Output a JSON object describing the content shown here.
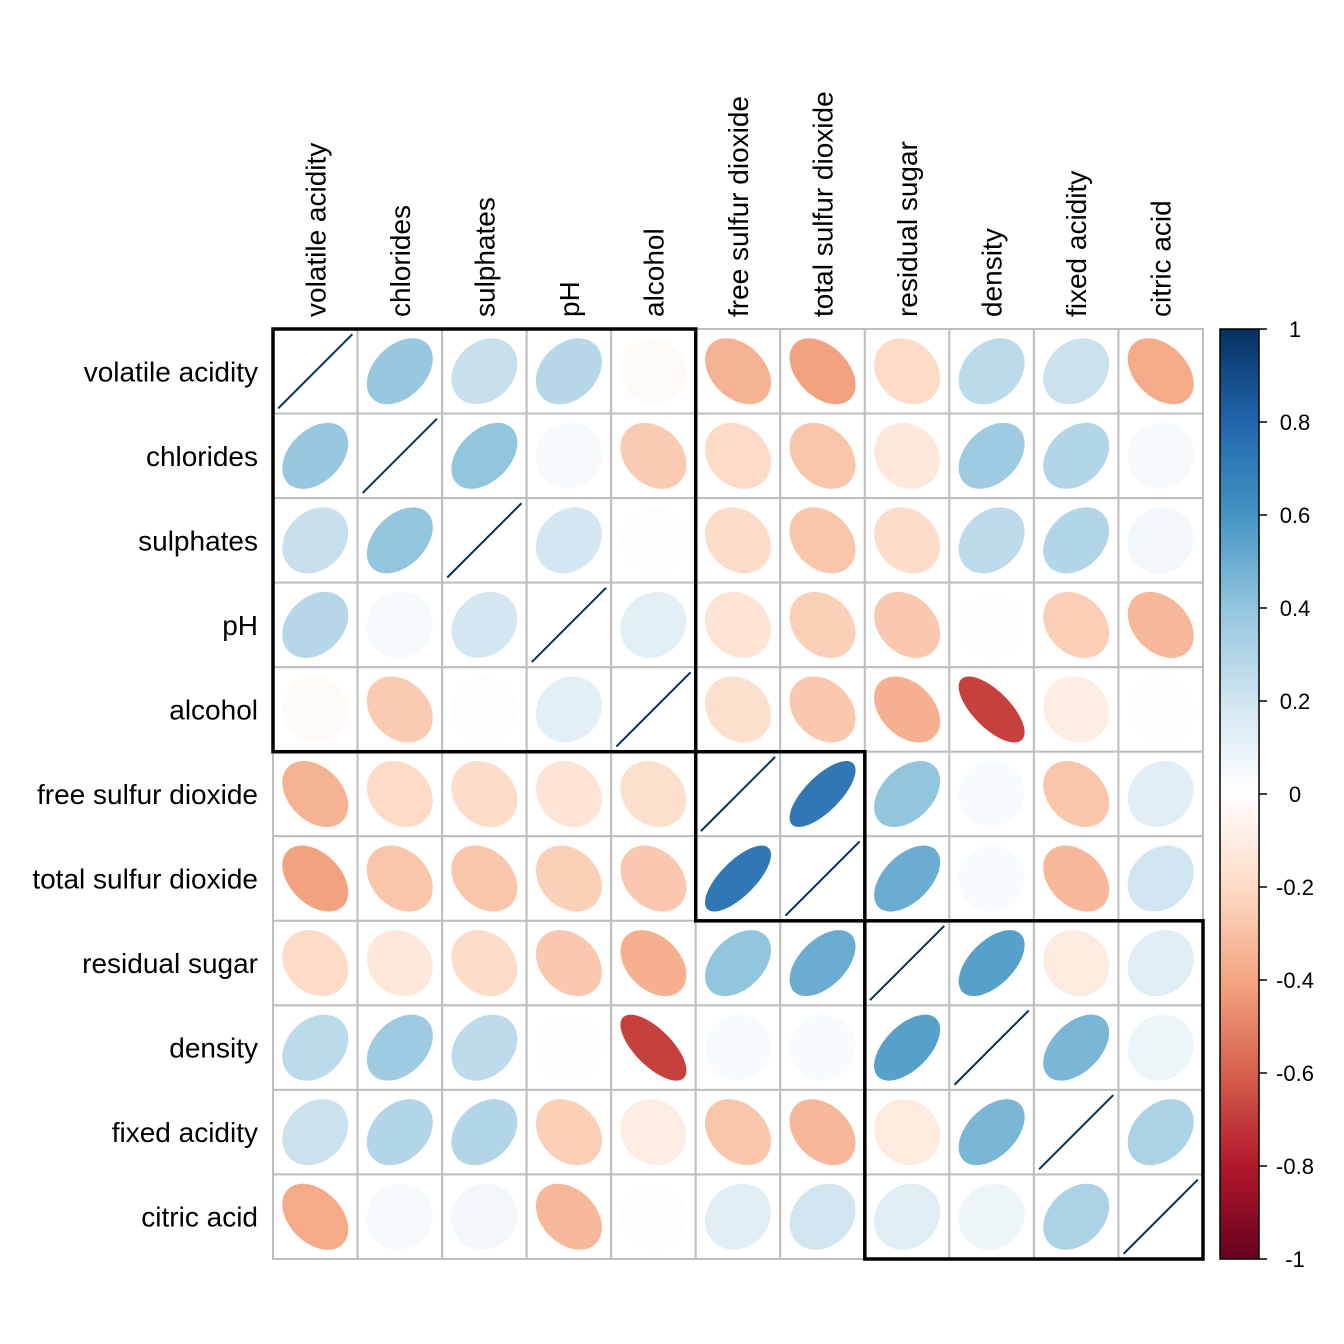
{
  "chart_data": {
    "type": "heatmap",
    "style": "corrplot-ellipse",
    "title": "",
    "variables": [
      "volatile acidity",
      "chlorides",
      "sulphates",
      "pH",
      "alcohol",
      "free sulfur dioxide",
      "total sulfur dioxide",
      "residual sugar",
      "density",
      "fixed acidity",
      "citric acid"
    ],
    "matrix": [
      [
        1.0,
        0.38,
        0.23,
        0.29,
        -0.03,
        -0.35,
        -0.41,
        -0.2,
        0.27,
        0.22,
        -0.38
      ],
      [
        0.38,
        1.0,
        0.4,
        0.04,
        -0.26,
        -0.2,
        -0.28,
        -0.13,
        0.36,
        0.3,
        0.04
      ],
      [
        0.23,
        0.4,
        1.0,
        0.19,
        -0.01,
        -0.19,
        -0.28,
        -0.19,
        0.26,
        0.3,
        0.06
      ],
      [
        0.29,
        0.04,
        0.19,
        1.0,
        0.12,
        -0.15,
        -0.24,
        -0.27,
        0.01,
        -0.25,
        -0.33
      ],
      [
        -0.03,
        -0.26,
        -0.01,
        0.12,
        1.0,
        -0.18,
        -0.27,
        -0.36,
        -0.69,
        -0.1,
        -0.01
      ],
      [
        -0.35,
        -0.2,
        -0.19,
        -0.15,
        -0.18,
        1.0,
        0.72,
        0.4,
        0.03,
        -0.28,
        0.13
      ],
      [
        -0.41,
        -0.28,
        -0.28,
        -0.24,
        -0.27,
        0.72,
        1.0,
        0.5,
        0.03,
        -0.33,
        0.2
      ],
      [
        -0.2,
        -0.13,
        -0.19,
        -0.27,
        -0.36,
        0.4,
        0.5,
        1.0,
        0.55,
        -0.11,
        0.14
      ],
      [
        0.27,
        0.36,
        0.26,
        0.01,
        -0.69,
        0.03,
        0.03,
        0.55,
        1.0,
        0.46,
        0.08
      ],
      [
        0.22,
        0.3,
        0.3,
        -0.25,
        -0.1,
        -0.28,
        -0.33,
        -0.11,
        0.46,
        1.0,
        0.32
      ],
      [
        -0.38,
        0.04,
        0.06,
        -0.33,
        -0.01,
        0.13,
        0.2,
        0.14,
        0.08,
        0.32,
        1.0
      ]
    ],
    "clusters": [
      {
        "start": 0,
        "end": 4
      },
      {
        "start": 5,
        "end": 6
      },
      {
        "start": 7,
        "end": 10
      }
    ],
    "colorbar": {
      "range": [
        -1,
        1
      ],
      "ticks": [
        1,
        0.8,
        0.6,
        0.4,
        0.2,
        0,
        -0.2,
        -0.4,
        -0.6,
        -0.8,
        -1
      ],
      "tick_labels": [
        "1",
        "0.8",
        "0.6",
        "0.4",
        "0.2",
        "0",
        "-0.2",
        "-0.4",
        "-0.6",
        "-0.8",
        "-1"
      ],
      "palette": [
        "#67001F",
        "#B2182B",
        "#D6604D",
        "#F4A582",
        "#FDDBC7",
        "#FFFFFF",
        "#D1E5F0",
        "#92C5DE",
        "#4393C3",
        "#2166AC",
        "#053061"
      ]
    },
    "grid_color": "#BEBEBE",
    "cluster_rect_color": "#000000",
    "diagonal_line_color": "#053061"
  }
}
